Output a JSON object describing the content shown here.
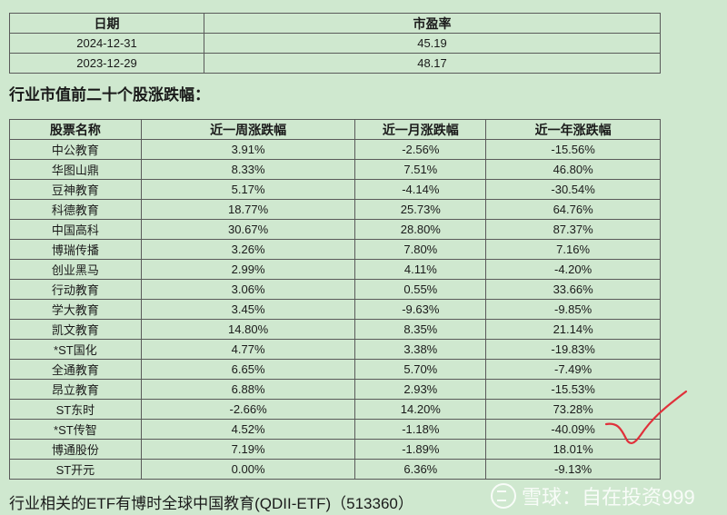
{
  "pe_table": {
    "headers": [
      "日期",
      "市盈率"
    ],
    "rows": [
      [
        "2024-12-31",
        "45.19"
      ],
      [
        "2023-12-29",
        "48.17"
      ]
    ]
  },
  "section_heading": "行业市值前二十个股涨跌幅：",
  "stock_table": {
    "headers": [
      "股票名称",
      "近一周涨跌幅",
      "近一月涨跌幅",
      "近一年涨跌幅"
    ],
    "rows": [
      [
        "中公教育",
        "3.91%",
        "-2.56%",
        "-15.56%"
      ],
      [
        "华图山鼎",
        "8.33%",
        "7.51%",
        "46.80%"
      ],
      [
        "豆神教育",
        "5.17%",
        "-4.14%",
        "-30.54%"
      ],
      [
        "科德教育",
        "18.77%",
        "25.73%",
        "64.76%"
      ],
      [
        "中国高科",
        "30.67%",
        "28.80%",
        "87.37%"
      ],
      [
        "博瑞传播",
        "3.26%",
        "7.80%",
        "7.16%"
      ],
      [
        "创业黑马",
        "2.99%",
        "4.11%",
        "-4.20%"
      ],
      [
        "行动教育",
        "3.06%",
        "0.55%",
        "33.66%"
      ],
      [
        "学大教育",
        "3.45%",
        "-9.63%",
        "-9.85%"
      ],
      [
        "凯文教育",
        "14.80%",
        "8.35%",
        "21.14%"
      ],
      [
        "*ST国化",
        "4.77%",
        "3.38%",
        "-19.83%"
      ],
      [
        "全通教育",
        "6.65%",
        "5.70%",
        "-7.49%"
      ],
      [
        "昂立教育",
        "6.88%",
        "2.93%",
        "-15.53%"
      ],
      [
        "ST东时",
        "-2.66%",
        "14.20%",
        "73.28%"
      ],
      [
        "*ST传智",
        "4.52%",
        "-1.18%",
        "-40.09%"
      ],
      [
        "博通股份",
        "7.19%",
        "-1.89%",
        "18.01%"
      ],
      [
        "ST开元",
        "0.00%",
        "6.36%",
        "-9.13%"
      ]
    ]
  },
  "footer_note": "行业相关的ETF有博时全球中国教育(QDII-ETF)（513360）",
  "watermark": "雪球：自在投资999",
  "colors": {
    "background": "#cfe8cf",
    "annotation": "#e0303a"
  }
}
